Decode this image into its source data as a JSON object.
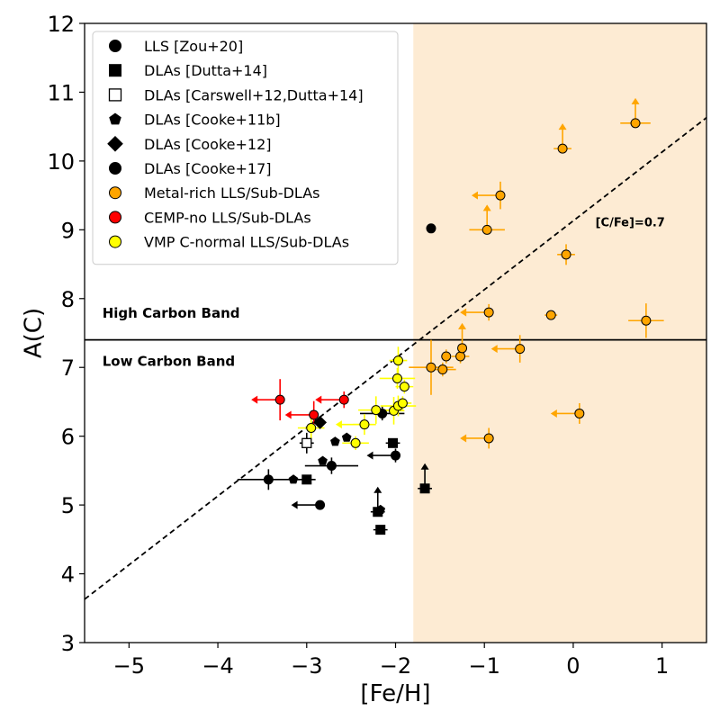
{
  "chart_data": {
    "type": "scatter",
    "xlabel": "[Fe/H]",
    "ylabel": "A(C)",
    "xlim": [
      -5.5,
      1.5
    ],
    "ylim": [
      3,
      12
    ],
    "xticks": [
      -5,
      -4,
      -3,
      -2,
      -1,
      0,
      1
    ],
    "xtick_labels": [
      "−5",
      "−4",
      "−3",
      "−2",
      "−1",
      "0",
      "1"
    ],
    "yticks": [
      3,
      4,
      5,
      6,
      7,
      8,
      9,
      10,
      11,
      12
    ],
    "ytick_labels": [
      "3",
      "4",
      "5",
      "6",
      "7",
      "8",
      "9",
      "10",
      "11",
      "12"
    ],
    "grid": false,
    "legend_position": "top-left",
    "shaded_region": {
      "x_from": -1.8,
      "x_to": 1.5,
      "color": "#fdebd3"
    },
    "reference_lines": [
      {
        "kind": "horizontal",
        "y": 7.4,
        "style": "solid",
        "color": "#000000"
      },
      {
        "kind": "diagonal",
        "slope": 1,
        "intercept": 9.13,
        "style": "dashed",
        "color": "#000000",
        "label": "[C/Fe]=0.7",
        "label_x": 0.25,
        "label_y": 9.05
      }
    ],
    "annotations": [
      {
        "text": "High Carbon Band",
        "x": -5.3,
        "y": 7.72
      },
      {
        "text": "Low Carbon Band",
        "x": -5.3,
        "y": 7.02
      }
    ],
    "series": [
      {
        "name": "LLS [Zou+20]",
        "marker": "circle",
        "color": "#000000",
        "points": [
          {
            "x": -2.85,
            "y": 5.0,
            "xerr": 0,
            "yerr": 0,
            "limit": "left"
          }
        ]
      },
      {
        "name": "DLAs [Dutta+14]",
        "marker": "square",
        "color": "#000000",
        "points": [
          {
            "x": -3.0,
            "y": 5.37,
            "xerr": 0.1,
            "yerr": 0.06,
            "limit": ""
          },
          {
            "x": -2.2,
            "y": 4.9,
            "xerr": 0.08,
            "yerr": 0.05,
            "limit": "up"
          },
          {
            "x": -2.17,
            "y": 4.64,
            "xerr": 0.08,
            "yerr": 0.05,
            "limit": ""
          },
          {
            "x": -2.03,
            "y": 5.9,
            "xerr": 0.08,
            "yerr": 0.05,
            "limit": ""
          },
          {
            "x": -1.67,
            "y": 5.24,
            "xerr": 0.08,
            "yerr": 0.05,
            "limit": "up"
          }
        ]
      },
      {
        "name": "DLAs [Carswell+12,Dutta+14]",
        "marker": "square-open",
        "color": "#000000",
        "points": [
          {
            "x": -3.0,
            "y": 5.9,
            "xerr": 0.08,
            "yerr": 0.15,
            "limit": ""
          }
        ]
      },
      {
        "name": "DLAs [Cooke+11b]",
        "marker": "pentagon",
        "color": "#000000",
        "points": [
          {
            "x": -3.15,
            "y": 5.37,
            "xerr": 0,
            "yerr": 0,
            "limit": ""
          },
          {
            "x": -2.82,
            "y": 5.64,
            "xerr": 0,
            "yerr": 0,
            "limit": ""
          },
          {
            "x": -2.68,
            "y": 5.92,
            "xerr": 0,
            "yerr": 0,
            "limit": ""
          },
          {
            "x": -2.55,
            "y": 5.98,
            "xerr": 0,
            "yerr": 0,
            "limit": ""
          },
          {
            "x": -2.17,
            "y": 4.93,
            "xerr": 0,
            "yerr": 0,
            "limit": ""
          }
        ]
      },
      {
        "name": "DLAs [Cooke+12]",
        "marker": "diamond",
        "color": "#000000",
        "points": [
          {
            "x": -2.85,
            "y": 6.2,
            "xerr": 0,
            "yerr": 0,
            "limit": ""
          }
        ]
      },
      {
        "name": "DLAs [Cooke+17]",
        "marker": "circle",
        "color": "#000000",
        "points": [
          {
            "x": -3.43,
            "y": 5.37,
            "xerr": 0.35,
            "yerr": 0.15,
            "limit": ""
          },
          {
            "x": -2.72,
            "y": 5.57,
            "xerr": 0.3,
            "yerr": 0.12,
            "limit": ""
          },
          {
            "x": -2.15,
            "y": 6.33,
            "xerr": 0.25,
            "yerr": 0.1,
            "limit": ""
          },
          {
            "x": -2.0,
            "y": 5.72,
            "xerr": 0,
            "yerr": 0.1,
            "limit": "left"
          },
          {
            "x": -1.6,
            "y": 9.02,
            "xerr": 0,
            "yerr": 0,
            "limit": ""
          }
        ]
      },
      {
        "name": "Metal-rich LLS/Sub-DLAs",
        "marker": "circle",
        "color": "#ffa500",
        "points": [
          {
            "x": -1.6,
            "y": 7.0,
            "xerr": 0.25,
            "yerr": 0.4,
            "limit": ""
          },
          {
            "x": -1.47,
            "y": 6.97,
            "xerr": 0.15,
            "yerr": 0.1,
            "limit": ""
          },
          {
            "x": -1.43,
            "y": 7.16,
            "xerr": 0.05,
            "yerr": 0.1,
            "limit": ""
          },
          {
            "x": -1.27,
            "y": 7.16,
            "xerr": 0.1,
            "yerr": 0.1,
            "limit": ""
          },
          {
            "x": -1.25,
            "y": 7.28,
            "xerr": 0,
            "yerr": 0,
            "limit": "up"
          },
          {
            "x": -0.95,
            "y": 5.97,
            "xerr": 0,
            "yerr": 0.15,
            "limit": "left"
          },
          {
            "x": -0.95,
            "y": 7.8,
            "xerr": 0,
            "yerr": 0.12,
            "limit": "left"
          },
          {
            "x": -0.97,
            "y": 9.0,
            "xerr": 0.2,
            "yerr": 0,
            "limit": "up"
          },
          {
            "x": -0.82,
            "y": 9.5,
            "xerr": 0,
            "yerr": 0.2,
            "limit": "left"
          },
          {
            "x": -0.6,
            "y": 7.27,
            "xerr": 0,
            "yerr": 0.2,
            "limit": "left"
          },
          {
            "x": -0.25,
            "y": 7.76,
            "xerr": 0.07,
            "yerr": 0.05,
            "limit": ""
          },
          {
            "x": -0.12,
            "y": 10.18,
            "xerr": 0.1,
            "yerr": 0,
            "limit": "up"
          },
          {
            "x": -0.08,
            "y": 8.64,
            "xerr": 0.1,
            "yerr": 0.15,
            "limit": ""
          },
          {
            "x": 0.07,
            "y": 6.33,
            "xerr": 0,
            "yerr": 0.15,
            "limit": "left"
          },
          {
            "x": 0.7,
            "y": 10.55,
            "xerr": 0.17,
            "yerr": 0,
            "limit": "up"
          },
          {
            "x": 0.82,
            "y": 7.68,
            "xerr": 0.2,
            "yerr": 0.25,
            "limit": ""
          }
        ]
      },
      {
        "name": "CEMP-no LLS/Sub-DLAs",
        "marker": "circle",
        "color": "#ff0000",
        "points": [
          {
            "x": -3.3,
            "y": 6.53,
            "xerr": 0,
            "yerr": 0.3,
            "limit": "left"
          },
          {
            "x": -2.92,
            "y": 6.31,
            "xerr": 0,
            "yerr": 0.2,
            "limit": "left"
          },
          {
            "x": -2.58,
            "y": 6.53,
            "xerr": 0,
            "yerr": 0.12,
            "limit": "left"
          }
        ]
      },
      {
        "name": "VMP C-normal LLS/Sub-DLAs",
        "marker": "circle",
        "color": "#ffff00",
        "points": [
          {
            "x": -2.95,
            "y": 6.12,
            "xerr": 0.15,
            "yerr": 0.15,
            "limit": ""
          },
          {
            "x": -2.45,
            "y": 5.9,
            "xerr": 0.15,
            "yerr": 0.1,
            "limit": ""
          },
          {
            "x": -2.35,
            "y": 6.17,
            "xerr": 0.13,
            "yerr": 0.15,
            "limit": "left"
          },
          {
            "x": -2.22,
            "y": 6.38,
            "xerr": 0.2,
            "yerr": 0.2,
            "limit": ""
          },
          {
            "x": -2.02,
            "y": 6.37,
            "xerr": 0.12,
            "yerr": 0.2,
            "limit": ""
          },
          {
            "x": -1.97,
            "y": 6.44,
            "xerr": 0.2,
            "yerr": 0.15,
            "limit": ""
          },
          {
            "x": -1.92,
            "y": 6.48,
            "xerr": 0.1,
            "yerr": 0.1,
            "limit": ""
          },
          {
            "x": -1.9,
            "y": 6.72,
            "xerr": 0.1,
            "yerr": 0.1,
            "limit": ""
          },
          {
            "x": -1.98,
            "y": 6.84,
            "xerr": 0.2,
            "yerr": 0.15,
            "limit": ""
          },
          {
            "x": -1.97,
            "y": 7.1,
            "xerr": 0.1,
            "yerr": 0.2,
            "limit": ""
          }
        ]
      }
    ]
  }
}
